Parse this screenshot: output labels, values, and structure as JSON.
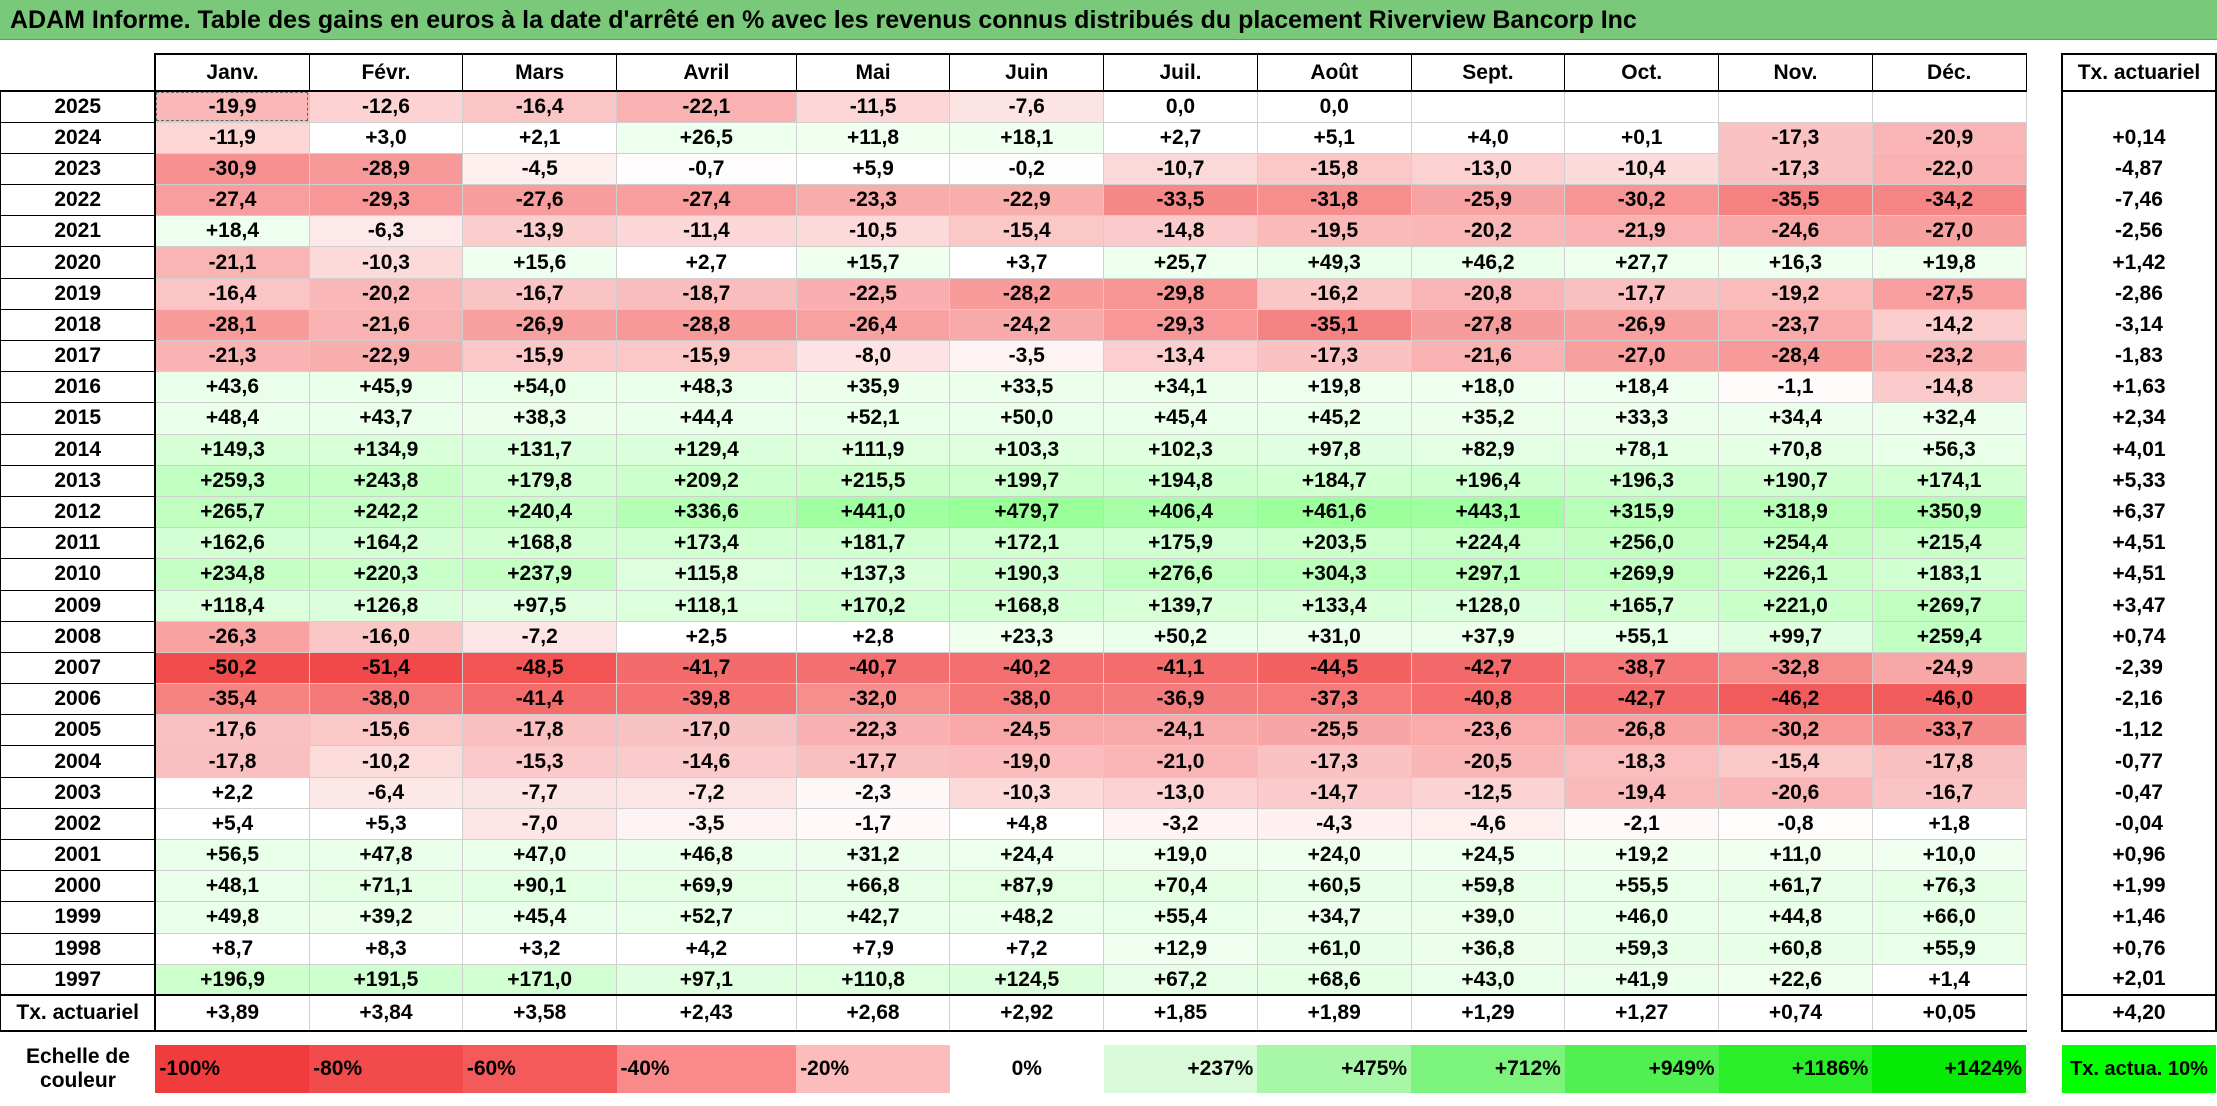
{
  "title": "ADAM Informe. Table des gains en euros à la date d'arrêté en % avec les revenus connus distribués du placement Riverview Bancorp Inc",
  "months": [
    "Janv.",
    "Févr.",
    "Mars",
    "Avril",
    "Mai",
    "Juin",
    "Juil.",
    "Août",
    "Sept.",
    "Oct.",
    "Nov.",
    "Déc."
  ],
  "tx_header": "Tx. actuariel",
  "rows": [
    {
      "year": "2025",
      "values": [
        "-19,9",
        "-12,6",
        "-16,4",
        "-22,1",
        "-11,5",
        "-7,6",
        "0,0",
        "0,0",
        "",
        "",
        "",
        ""
      ],
      "tx": ""
    },
    {
      "year": "2024",
      "values": [
        "-11,9",
        "+3,0",
        "+2,1",
        "+26,5",
        "+11,8",
        "+18,1",
        "+2,7",
        "+5,1",
        "+4,0",
        "+0,1",
        "-17,3",
        "-20,9"
      ],
      "tx": "+0,14"
    },
    {
      "year": "2023",
      "values": [
        "-30,9",
        "-28,9",
        "-4,5",
        "-0,7",
        "+5,9",
        "-0,2",
        "-10,7",
        "-15,8",
        "-13,0",
        "-10,4",
        "-17,3",
        "-22,0"
      ],
      "tx": "-4,87"
    },
    {
      "year": "2022",
      "values": [
        "-27,4",
        "-29,3",
        "-27,6",
        "-27,4",
        "-23,3",
        "-22,9",
        "-33,5",
        "-31,8",
        "-25,9",
        "-30,2",
        "-35,5",
        "-34,2"
      ],
      "tx": "-7,46"
    },
    {
      "year": "2021",
      "values": [
        "+18,4",
        "-6,3",
        "-13,9",
        "-11,4",
        "-10,5",
        "-15,4",
        "-14,8",
        "-19,5",
        "-20,2",
        "-21,9",
        "-24,6",
        "-27,0"
      ],
      "tx": "-2,56"
    },
    {
      "year": "2020",
      "values": [
        "-21,1",
        "-10,3",
        "+15,6",
        "+2,7",
        "+15,7",
        "+3,7",
        "+25,7",
        "+49,3",
        "+46,2",
        "+27,7",
        "+16,3",
        "+19,8"
      ],
      "tx": "+1,42"
    },
    {
      "year": "2019",
      "values": [
        "-16,4",
        "-20,2",
        "-16,7",
        "-18,7",
        "-22,5",
        "-28,2",
        "-29,8",
        "-16,2",
        "-20,8",
        "-17,7",
        "-19,2",
        "-27,5"
      ],
      "tx": "-2,86"
    },
    {
      "year": "2018",
      "values": [
        "-28,1",
        "-21,6",
        "-26,9",
        "-28,8",
        "-26,4",
        "-24,2",
        "-29,3",
        "-35,1",
        "-27,8",
        "-26,9",
        "-23,7",
        "-14,2"
      ],
      "tx": "-3,14"
    },
    {
      "year": "2017",
      "values": [
        "-21,3",
        "-22,9",
        "-15,9",
        "-15,9",
        "-8,0",
        "-3,5",
        "-13,4",
        "-17,3",
        "-21,6",
        "-27,0",
        "-28,4",
        "-23,2"
      ],
      "tx": "-1,83"
    },
    {
      "year": "2016",
      "values": [
        "+43,6",
        "+45,9",
        "+54,0",
        "+48,3",
        "+35,9",
        "+33,5",
        "+34,1",
        "+19,8",
        "+18,0",
        "+18,4",
        "-1,1",
        "-14,8"
      ],
      "tx": "+1,63"
    },
    {
      "year": "2015",
      "values": [
        "+48,4",
        "+43,7",
        "+38,3",
        "+44,4",
        "+52,1",
        "+50,0",
        "+45,4",
        "+45,2",
        "+35,2",
        "+33,3",
        "+34,4",
        "+32,4"
      ],
      "tx": "+2,34"
    },
    {
      "year": "2014",
      "values": [
        "+149,3",
        "+134,9",
        "+131,7",
        "+129,4",
        "+111,9",
        "+103,3",
        "+102,3",
        "+97,8",
        "+82,9",
        "+78,1",
        "+70,8",
        "+56,3"
      ],
      "tx": "+4,01"
    },
    {
      "year": "2013",
      "values": [
        "+259,3",
        "+243,8",
        "+179,8",
        "+209,2",
        "+215,5",
        "+199,7",
        "+194,8",
        "+184,7",
        "+196,4",
        "+196,3",
        "+190,7",
        "+174,1"
      ],
      "tx": "+5,33"
    },
    {
      "year": "2012",
      "values": [
        "+265,7",
        "+242,2",
        "+240,4",
        "+336,6",
        "+441,0",
        "+479,7",
        "+406,4",
        "+461,6",
        "+443,1",
        "+315,9",
        "+318,9",
        "+350,9"
      ],
      "tx": "+6,37"
    },
    {
      "year": "2011",
      "values": [
        "+162,6",
        "+164,2",
        "+168,8",
        "+173,4",
        "+181,7",
        "+172,1",
        "+175,9",
        "+203,5",
        "+224,4",
        "+256,0",
        "+254,4",
        "+215,4"
      ],
      "tx": "+4,51"
    },
    {
      "year": "2010",
      "values": [
        "+234,8",
        "+220,3",
        "+237,9",
        "+115,8",
        "+137,3",
        "+190,3",
        "+276,6",
        "+304,3",
        "+297,1",
        "+269,9",
        "+226,1",
        "+183,1"
      ],
      "tx": "+4,51"
    },
    {
      "year": "2009",
      "values": [
        "+118,4",
        "+126,8",
        "+97,5",
        "+118,1",
        "+170,2",
        "+168,8",
        "+139,7",
        "+133,4",
        "+128,0",
        "+165,7",
        "+221,0",
        "+269,7"
      ],
      "tx": "+3,47"
    },
    {
      "year": "2008",
      "values": [
        "-26,3",
        "-16,0",
        "-7,2",
        "+2,5",
        "+2,8",
        "+23,3",
        "+50,2",
        "+31,0",
        "+37,9",
        "+55,1",
        "+99,7",
        "+259,4"
      ],
      "tx": "+0,74"
    },
    {
      "year": "2007",
      "values": [
        "-50,2",
        "-51,4",
        "-48,5",
        "-41,7",
        "-40,7",
        "-40,2",
        "-41,1",
        "-44,5",
        "-42,7",
        "-38,7",
        "-32,8",
        "-24,9"
      ],
      "tx": "-2,39"
    },
    {
      "year": "2006",
      "values": [
        "-35,4",
        "-38,0",
        "-41,4",
        "-39,8",
        "-32,0",
        "-38,0",
        "-36,9",
        "-37,3",
        "-40,8",
        "-42,7",
        "-46,2",
        "-46,0"
      ],
      "tx": "-2,16"
    },
    {
      "year": "2005",
      "values": [
        "-17,6",
        "-15,6",
        "-17,8",
        "-17,0",
        "-22,3",
        "-24,5",
        "-24,1",
        "-25,5",
        "-23,6",
        "-26,8",
        "-30,2",
        "-33,7"
      ],
      "tx": "-1,12"
    },
    {
      "year": "2004",
      "values": [
        "-17,8",
        "-10,2",
        "-15,3",
        "-14,6",
        "-17,7",
        "-19,0",
        "-21,0",
        "-17,3",
        "-20,5",
        "-18,3",
        "-15,4",
        "-17,8"
      ],
      "tx": "-0,77"
    },
    {
      "year": "2003",
      "values": [
        "+2,2",
        "-6,4",
        "-7,7",
        "-7,2",
        "-2,3",
        "-10,3",
        "-13,0",
        "-14,7",
        "-12,5",
        "-19,4",
        "-20,6",
        "-16,7"
      ],
      "tx": "-0,47"
    },
    {
      "year": "2002",
      "values": [
        "+5,4",
        "+5,3",
        "-7,0",
        "-3,5",
        "-1,7",
        "+4,8",
        "-3,2",
        "-4,3",
        "-4,6",
        "-2,1",
        "-0,8",
        "+1,8"
      ],
      "tx": "-0,04"
    },
    {
      "year": "2001",
      "values": [
        "+56,5",
        "+47,8",
        "+47,0",
        "+46,8",
        "+31,2",
        "+24,4",
        "+19,0",
        "+24,0",
        "+24,5",
        "+19,2",
        "+11,0",
        "+10,0"
      ],
      "tx": "+0,96"
    },
    {
      "year": "2000",
      "values": [
        "+48,1",
        "+71,1",
        "+90,1",
        "+69,9",
        "+66,8",
        "+87,9",
        "+70,4",
        "+60,5",
        "+59,8",
        "+55,5",
        "+61,7",
        "+76,3"
      ],
      "tx": "+1,99"
    },
    {
      "year": "1999",
      "values": [
        "+49,8",
        "+39,2",
        "+45,4",
        "+52,7",
        "+42,7",
        "+48,2",
        "+55,4",
        "+34,7",
        "+39,0",
        "+46,0",
        "+44,8",
        "+66,0"
      ],
      "tx": "+1,46"
    },
    {
      "year": "1998",
      "values": [
        "+8,7",
        "+8,3",
        "+3,2",
        "+4,2",
        "+7,9",
        "+7,2",
        "+12,9",
        "+61,0",
        "+36,8",
        "+59,3",
        "+60,8",
        "+55,9"
      ],
      "tx": "+0,76"
    },
    {
      "year": "1997",
      "values": [
        "+196,9",
        "+191,5",
        "+171,0",
        "+97,1",
        "+110,8",
        "+124,5",
        "+67,2",
        "+68,6",
        "+43,0",
        "+41,9",
        "+22,6",
        "+1,4"
      ],
      "tx": "+2,01"
    }
  ],
  "footer": {
    "label": "Tx. actuariel",
    "values": [
      "+3,89",
      "+3,84",
      "+3,58",
      "+2,43",
      "+2,68",
      "+2,92",
      "+1,85",
      "+1,89",
      "+1,29",
      "+1,27",
      "+0,74",
      "+0,05"
    ],
    "tx": "+4,20"
  },
  "scale": {
    "label": "Echelle de couleur",
    "items": [
      {
        "label": "-100%",
        "color": "#f03c3c"
      },
      {
        "label": "-80%",
        "color": "#f14b4b"
      },
      {
        "label": "-60%",
        "color": "#f55a5a"
      },
      {
        "label": "-40%",
        "color": "#fa8a8a"
      },
      {
        "label": "-20%",
        "color": "#fdbcbc"
      },
      {
        "label": "0%",
        "color": "#ffffff"
      },
      {
        "label": "+237%",
        "color": "#d8fad8"
      },
      {
        "label": "+475%",
        "color": "#a8f7a8"
      },
      {
        "label": "+712%",
        "color": "#7cf47c"
      },
      {
        "label": "+949%",
        "color": "#50f050"
      },
      {
        "label": "+1186%",
        "color": "#2aee2a"
      },
      {
        "label": "+1424%",
        "color": "#06ea06"
      }
    ],
    "tx_label": "Tx. actua. 10%",
    "tx_color": "#00ff00"
  },
  "colors": {
    "title_bg": "#7ac97a",
    "negative_max": "#f03c3c",
    "positive_max": "#00ff00"
  }
}
